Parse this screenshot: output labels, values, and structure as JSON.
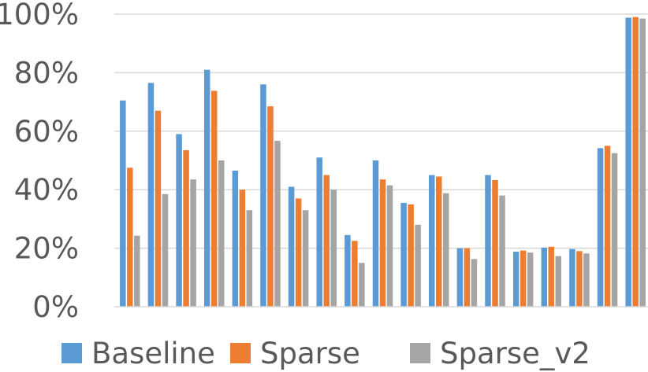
{
  "chart_data": {
    "type": "bar",
    "categories": [
      "",
      "",
      "",
      "",
      "",
      "",
      "",
      "",
      "",
      "",
      "",
      "",
      "",
      "",
      "",
      "",
      "",
      "",
      ""
    ],
    "series": [
      {
        "name": "Baseline",
        "color": "#5B9BD5",
        "values": [
          70.5,
          76.5,
          59,
          81,
          46.5,
          76,
          41,
          51,
          24.5,
          50,
          35.5,
          45,
          20,
          45,
          18.8,
          20.2,
          19.7,
          54.2,
          98.8
        ]
      },
      {
        "name": "Sparse",
        "color": "#ED7D31",
        "values": [
          47.5,
          67,
          53.5,
          73.8,
          40,
          68.5,
          37,
          45,
          22.5,
          43.5,
          35,
          44.5,
          20,
          43.3,
          19.2,
          20.5,
          19,
          55,
          99
        ]
      },
      {
        "name": "Sparse_v2",
        "color": "#A5A5A5",
        "values": [
          24.3,
          38.5,
          43.5,
          50,
          33,
          56.7,
          33,
          40,
          15,
          41.5,
          28,
          38.8,
          16.3,
          38,
          18.5,
          17.3,
          18.2,
          52.5,
          98.5
        ]
      }
    ],
    "yaxis": {
      "min": 0,
      "max": 100,
      "ticks": [
        0,
        20,
        40,
        60,
        80,
        100
      ],
      "tick_format": "percent"
    },
    "ylim": [
      0,
      100
    ],
    "gridlines": true,
    "gridline_color": "#D9D9D9",
    "legend_position": "bottom",
    "title": "",
    "xlabel": "",
    "ylabel": ""
  }
}
